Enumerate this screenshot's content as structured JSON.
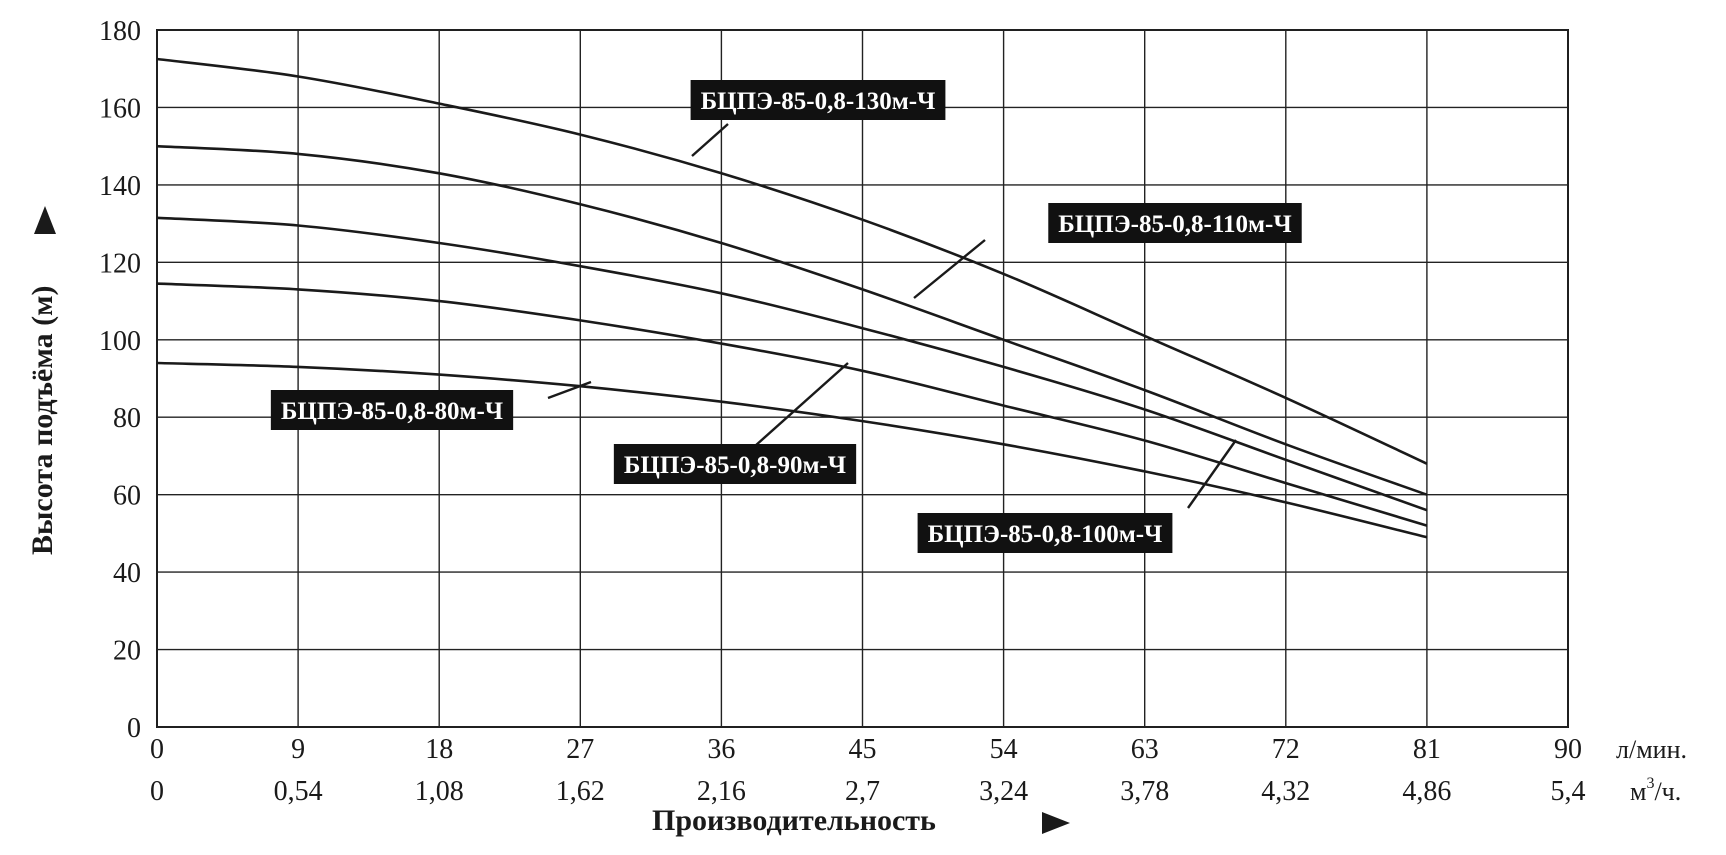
{
  "chart_data": {
    "type": "line",
    "title": "",
    "ylabel": "Высота подъёма (м)",
    "xlabel": "Производительность",
    "ylim": [
      0,
      180
    ],
    "xlim": [
      0,
      90
    ],
    "grid": true,
    "y_ticks": [
      "0",
      "20",
      "40",
      "60",
      "80",
      "100",
      "120",
      "140",
      "160",
      "180"
    ],
    "x_ticks_primary": [
      "0",
      "9",
      "18",
      "27",
      "36",
      "45",
      "54",
      "63",
      "72",
      "81",
      "90"
    ],
    "x_ticks_secondary": [
      "0",
      "0,54",
      "1,08",
      "1,62",
      "2,16",
      "2,7",
      "3,24",
      "3,78",
      "4,32",
      "4,86",
      "5,4"
    ],
    "x_unit_primary": "л/мин.",
    "x_unit_secondary_base": "м",
    "x_unit_secondary_sup": "3",
    "x_unit_secondary_end": "/ч.",
    "x": [
      0,
      9,
      18,
      27,
      36,
      45,
      54,
      63,
      72,
      81
    ],
    "series": [
      {
        "name": "БЦПЭ-85-0,8-130м-Ч",
        "values": [
          172.5,
          168,
          161,
          153,
          143,
          131,
          117,
          101,
          85,
          68
        ]
      },
      {
        "name": "БЦПЭ-85-0,8-110м-Ч",
        "values": [
          150,
          148,
          143,
          135,
          125,
          113,
          100,
          87,
          73,
          60
        ]
      },
      {
        "name": "БЦПЭ-85-0,8-100м-Ч",
        "values": [
          131.5,
          129.5,
          125,
          119,
          112,
          103,
          93,
          82,
          69,
          56
        ]
      },
      {
        "name": "БЦПЭ-85-0,8-90м-Ч",
        "values": [
          114.5,
          113,
          110,
          105,
          99,
          92,
          83,
          74,
          63,
          52
        ]
      },
      {
        "name": "БЦПЭ-85-0,8-80м-Ч",
        "values": [
          94,
          93,
          91,
          88,
          84,
          79,
          73,
          66,
          58,
          49
        ]
      }
    ]
  }
}
